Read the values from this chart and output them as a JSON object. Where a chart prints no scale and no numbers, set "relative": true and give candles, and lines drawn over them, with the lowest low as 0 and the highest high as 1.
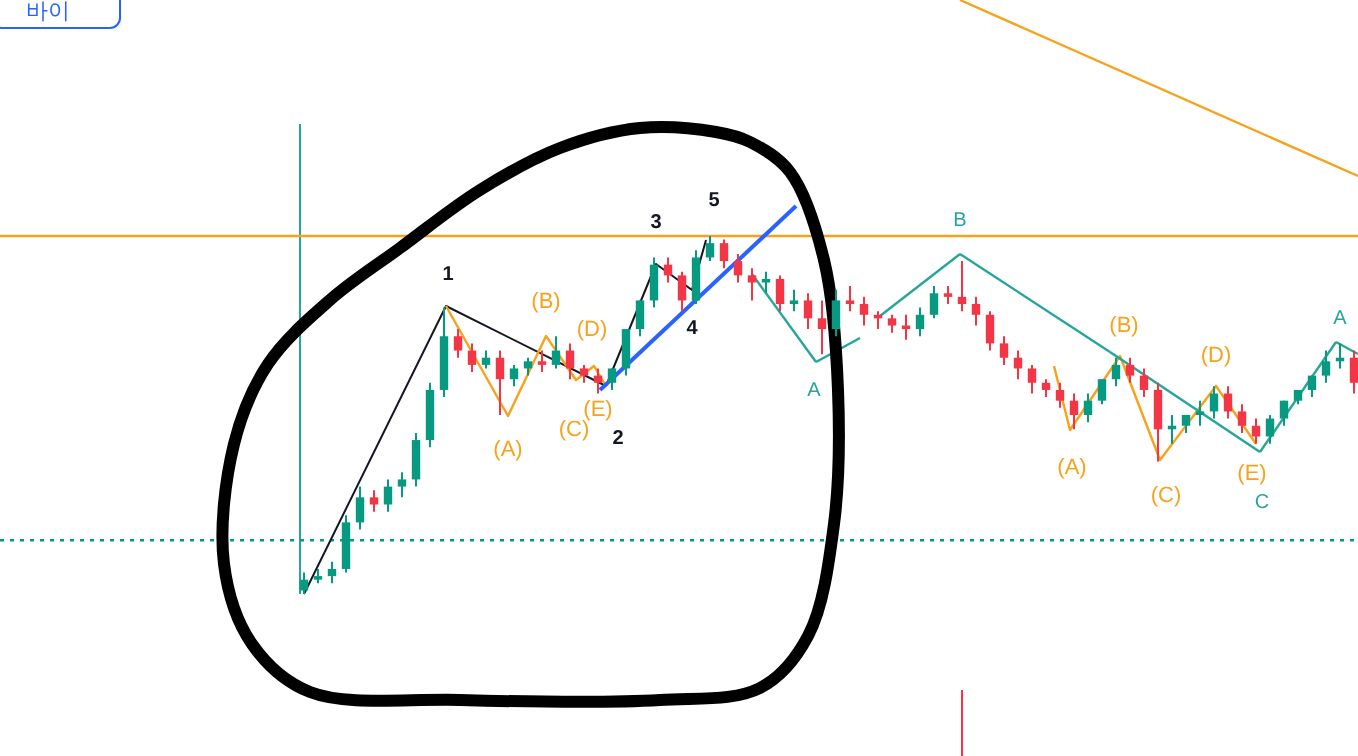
{
  "chart_data": {
    "type": "candlestick",
    "relative": true,
    "categories": [
      null,
      null,
      null,
      null,
      null,
      null,
      null,
      null,
      null,
      null,
      null,
      null,
      null,
      null,
      null,
      null,
      null,
      null,
      null,
      null,
      null,
      null,
      null,
      null,
      null,
      null,
      null,
      null,
      null,
      null,
      null,
      null,
      null,
      null,
      null,
      null,
      null,
      null,
      null,
      null,
      null,
      null,
      null,
      null,
      null,
      null,
      null,
      null,
      null,
      null,
      null,
      null,
      null,
      null,
      null,
      null,
      null,
      null,
      null,
      null,
      null,
      null,
      null,
      null,
      null,
      null,
      null,
      null,
      null,
      null,
      null,
      null,
      null,
      null,
      null,
      null
    ],
    "colors": [
      "#089981",
      "#089981",
      "#089981",
      "#089981",
      "#089981",
      "#f23645",
      "#089981",
      "#089981",
      "#089981",
      "#089981",
      "#089981",
      "#f23645",
      "#f23645",
      "#089981",
      "#f23645",
      "#089981",
      "#089981",
      "#f23645",
      "#089981",
      "#f23645",
      "#f23645",
      "#f23645",
      "#089981",
      "#089981",
      "#089981",
      "#089981",
      "#f23645",
      "#f23645",
      "#089981",
      "#089981",
      "#f23645",
      "#f23645",
      "#f23645",
      "#089981",
      "#f23645",
      "#089981",
      "#f23645",
      "#f23645",
      "#089981",
      "#f23645",
      "#f23645",
      "#f23645",
      "#f23645",
      "#f23645",
      "#089981",
      "#089981",
      "#f23645",
      "#f23645",
      "#f23645",
      "#f23645",
      "#f23645",
      "#f23645",
      "#f23645",
      "#f23645",
      "#f23645",
      "#f23645",
      "#089981",
      "#089981",
      "#089981",
      "#f23645",
      "#f23645",
      "#f23645",
      "#089981",
      "#089981",
      "#089981",
      "#089981",
      "#f23645",
      "#f23645",
      "#f23645",
      "#089981",
      "#089981",
      "#089981",
      "#089981",
      "#089981",
      "#089981",
      "#f23645"
    ],
    "ohlc": [
      [
        0.01,
        0.06,
        0,
        0.04
      ],
      [
        0.04,
        0.07,
        0.03,
        0.05
      ],
      [
        0.05,
        0.09,
        0.03,
        0.07
      ],
      [
        0.07,
        0.22,
        0.06,
        0.2
      ],
      [
        0.2,
        0.3,
        0.18,
        0.27
      ],
      [
        0.27,
        0.29,
        0.23,
        0.25
      ],
      [
        0.25,
        0.32,
        0.23,
        0.3
      ],
      [
        0.3,
        0.34,
        0.27,
        0.32
      ],
      [
        0.32,
        0.45,
        0.3,
        0.43
      ],
      [
        0.43,
        0.59,
        0.41,
        0.57
      ],
      [
        0.57,
        0.8,
        0.55,
        0.72
      ],
      [
        0.72,
        0.74,
        0.66,
        0.68
      ],
      [
        0.68,
        0.7,
        0.62,
        0.64
      ],
      [
        0.64,
        0.68,
        0.63,
        0.66
      ],
      [
        0.66,
        0.68,
        0.5,
        0.6
      ],
      [
        0.6,
        0.64,
        0.58,
        0.63
      ],
      [
        0.63,
        0.66,
        0.61,
        0.65
      ],
      [
        0.65,
        0.68,
        0.62,
        0.64
      ],
      [
        0.64,
        0.72,
        0.63,
        0.68
      ],
      [
        0.68,
        0.7,
        0.6,
        0.63
      ],
      [
        0.63,
        0.64,
        0.59,
        0.61
      ],
      [
        0.61,
        0.63,
        0.56,
        0.59
      ],
      [
        0.59,
        0.63,
        0.57,
        0.63
      ],
      [
        0.63,
        0.74,
        0.61,
        0.74
      ],
      [
        0.74,
        0.82,
        0.72,
        0.82
      ],
      [
        0.82,
        0.94,
        0.8,
        0.92
      ],
      [
        0.92,
        0.94,
        0.87,
        0.89
      ],
      [
        0.89,
        0.9,
        0.79,
        0.82
      ],
      [
        0.82,
        0.96,
        0.81,
        0.94
      ],
      [
        0.94,
        1,
        0.93,
        0.98
      ],
      [
        0.98,
        0.99,
        0.91,
        0.93
      ],
      [
        0.93,
        0.95,
        0.87,
        0.89
      ],
      [
        0.89,
        0.91,
        0.82,
        0.87
      ],
      [
        0.87,
        0.9,
        0.84,
        0.88
      ],
      [
        0.88,
        0.89,
        0.79,
        0.81
      ],
      [
        0.81,
        0.85,
        0.79,
        0.82
      ],
      [
        0.82,
        0.84,
        0.74,
        0.77
      ],
      [
        0.77,
        0.82,
        0.67,
        0.74
      ],
      [
        0.74,
        0.85,
        0.72,
        0.82
      ],
      [
        0.82,
        0.86,
        0.79,
        0.81
      ],
      [
        0.81,
        0.83,
        0.75,
        0.78
      ],
      [
        0.78,
        0.79,
        0.74,
        0.77
      ],
      [
        0.77,
        0.78,
        0.73,
        0.75
      ],
      [
        0.75,
        0.78,
        0.71,
        0.74
      ],
      [
        0.74,
        0.8,
        0.72,
        0.78
      ],
      [
        0.78,
        0.86,
        0.77,
        0.84
      ],
      [
        0.84,
        0.86,
        0.81,
        0.83
      ],
      [
        0.83,
        0.93,
        0.79,
        0.81
      ],
      [
        0.81,
        0.83,
        0.75,
        0.78
      ],
      [
        0.78,
        0.79,
        0.68,
        0.7
      ],
      [
        0.7,
        0.72,
        0.64,
        0.66
      ],
      [
        0.66,
        0.68,
        0.6,
        0.63
      ],
      [
        0.63,
        0.64,
        0.56,
        0.59
      ],
      [
        0.59,
        0.6,
        0.55,
        0.57
      ],
      [
        0.57,
        0.59,
        0.52,
        0.54
      ],
      [
        0.54,
        0.56,
        0.46,
        0.5
      ],
      [
        0.5,
        0.56,
        0.48,
        0.54
      ],
      [
        0.54,
        0.6,
        0.53,
        0.6
      ],
      [
        0.6,
        0.66,
        0.58,
        0.64
      ],
      [
        0.64,
        0.66,
        0.59,
        0.61
      ],
      [
        0.61,
        0.63,
        0.55,
        0.57
      ],
      [
        0.57,
        0.59,
        0.37,
        0.46
      ],
      [
        0.46,
        0.5,
        0.42,
        0.47
      ],
      [
        0.47,
        0.5,
        0.45,
        0.5
      ],
      [
        0.5,
        0.54,
        0.47,
        0.51
      ],
      [
        0.51,
        0.58,
        0.49,
        0.56
      ],
      [
        0.56,
        0.58,
        0.49,
        0.51
      ],
      [
        0.51,
        0.53,
        0.45,
        0.47
      ],
      [
        0.47,
        0.49,
        0.42,
        0.44
      ],
      [
        0.44,
        0.5,
        0.42,
        0.49
      ],
      [
        0.49,
        0.54,
        0.47,
        0.54
      ],
      [
        0.54,
        0.57,
        0.53,
        0.57
      ],
      [
        0.57,
        0.61,
        0.55,
        0.61
      ],
      [
        0.61,
        0.68,
        0.59,
        0.65
      ],
      [
        0.65,
        0.7,
        0.63,
        0.66
      ],
      [
        0.66,
        0.68,
        0.56,
        0.59
      ]
    ],
    "ref_lines": [
      {
        "axis": "y",
        "value": 0.15,
        "color": "#089981",
        "line_style": "dotted"
      },
      {
        "axis": "y",
        "value": 1.0,
        "color": "#f7a21b",
        "line_style": "solid"
      }
    ],
    "annotations": [
      "1",
      "2",
      "3",
      "4",
      "5",
      "(A)",
      "(B)",
      "(C)",
      "(D)",
      "(E)",
      "A",
      "B",
      "(A)",
      "(B)",
      "(C)",
      "(D)",
      "(E)",
      "C",
      "A",
      "바이"
    ]
  }
}
